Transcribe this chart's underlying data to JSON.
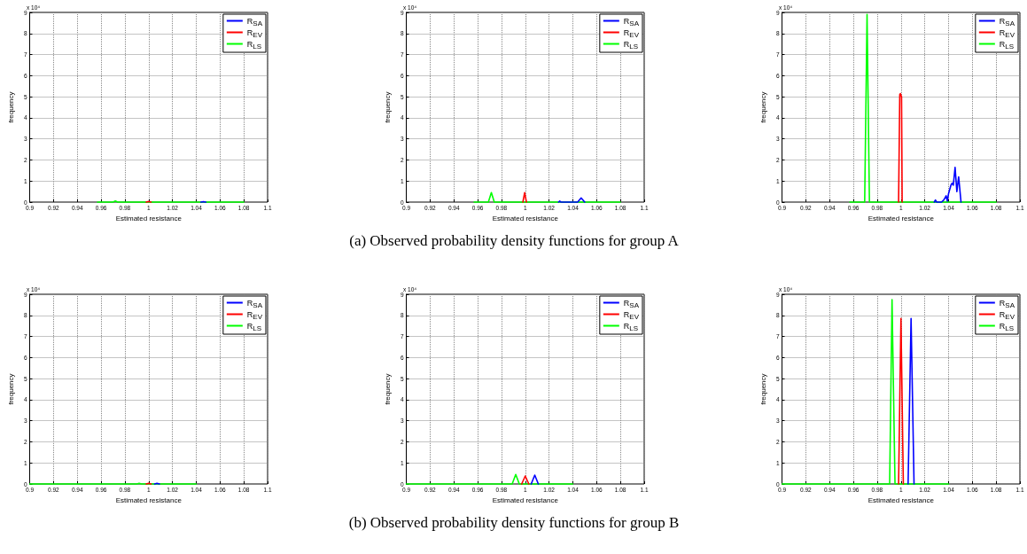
{
  "chart_data": [
    {
      "type": "line",
      "xlabel": "Estimated resistance",
      "ylabel": "frequency",
      "annotations": [
        "x 10⁴"
      ],
      "xlim": [
        0.9,
        1.1
      ],
      "xticks": [
        0.9,
        0.92,
        0.94,
        0.96,
        0.98,
        1,
        1.02,
        1.04,
        1.06,
        1.08,
        1.1
      ],
      "ylim": [
        0,
        9
      ],
      "yticks": [
        0,
        1,
        2,
        3,
        4,
        5,
        6,
        7,
        8,
        9
      ],
      "grid": true,
      "legend": "top right",
      "series": [
        {
          "name": "R$_{SA}$",
          "color": "#0000ff",
          "x": [
            1.044,
            1.046,
            1.048
          ],
          "values": [
            0,
            0.02,
            0
          ]
        },
        {
          "name": "R$_{EV}$",
          "color": "#ff0000",
          "x": [
            0.998,
            1.0,
            1.002
          ],
          "values": [
            0,
            0.03,
            0
          ]
        },
        {
          "name": "R$_{LS}$",
          "color": "#00ff00",
          "x": [
            0.957,
            0.97,
            0.972,
            0.974,
            1.08
          ],
          "values": [
            0,
            0,
            0.05,
            0,
            0
          ]
        }
      ]
    },
    {
      "type": "line",
      "xlabel": "Estimated resistance",
      "ylabel": "frequency",
      "annotations": [
        "x 10⁴",
        "(a) Observed probability density functions for group A"
      ],
      "xlim": [
        0.9,
        1.1
      ],
      "xticks": [
        0.9,
        0.92,
        0.94,
        0.96,
        0.98,
        1,
        1.02,
        1.04,
        1.06,
        1.08,
        1.1
      ],
      "ylim": [
        0,
        9
      ],
      "yticks": [
        0,
        1,
        2,
        3,
        4,
        5,
        6,
        7,
        8,
        9
      ],
      "grid": true,
      "legend": "top right",
      "series": [
        {
          "name": "R$_{SA}$",
          "color": "#0000ff",
          "x": [
            1.028,
            1.029,
            1.03,
            1.044,
            1.047,
            1.05
          ],
          "values": [
            0,
            0.05,
            0,
            0,
            0.2,
            0
          ]
        },
        {
          "name": "R$_{EV}$",
          "color": "#ff0000",
          "x": [
            0.998,
            0.9995,
            1.001
          ],
          "values": [
            0,
            0.45,
            0
          ]
        },
        {
          "name": "R$_{LS}$",
          "color": "#00ff00",
          "x": [
            0.957,
            0.969,
            0.9715,
            0.974,
            1.08
          ],
          "values": [
            0,
            0,
            0.45,
            0,
            0
          ]
        }
      ]
    },
    {
      "type": "line",
      "xlabel": "Estimated resistance",
      "ylabel": "frequency",
      "annotations": [
        "x 10⁴"
      ],
      "xlim": [
        0.9,
        1.1
      ],
      "xticks": [
        0.9,
        0.92,
        0.94,
        0.96,
        0.98,
        1,
        1.02,
        1.04,
        1.06,
        1.08,
        1.1
      ],
      "ylim": [
        0,
        9
      ],
      "yticks": [
        0,
        1,
        2,
        3,
        4,
        5,
        6,
        7,
        8,
        9
      ],
      "grid": true,
      "legend": "top right",
      "series": [
        {
          "name": "R$_{SA}$",
          "color": "#0000ff",
          "x": [
            1.028,
            1.029,
            1.03,
            1.034,
            1.036,
            1.038,
            1.039,
            1.04,
            1.042,
            1.043,
            1.044,
            1.0455,
            1.047,
            1.0485,
            1.0505
          ],
          "values": [
            0,
            0.1,
            0,
            0,
            0.1,
            0.3,
            0.05,
            0.4,
            0.8,
            0.9,
            0.8,
            1.65,
            0.5,
            1.2,
            0
          ]
        },
        {
          "name": "R$_{EV}$",
          "color": "#ff0000",
          "x": [
            0.998,
            0.999,
            0.9995,
            1.0005,
            1.001
          ],
          "values": [
            0,
            5.1,
            5.15,
            5.0,
            0
          ]
        },
        {
          "name": "R$_{LS}$",
          "color": "#00ff00",
          "x": [
            0.957,
            0.9695,
            0.9715,
            0.9735,
            1.08
          ],
          "values": [
            0,
            0,
            8.9,
            0,
            0
          ]
        }
      ]
    },
    {
      "type": "line",
      "xlabel": "Estimated resistance",
      "ylabel": "frequency",
      "annotations": [
        "x 10⁴"
      ],
      "xlim": [
        0.9,
        1.1
      ],
      "xticks": [
        0.9,
        0.92,
        0.94,
        0.96,
        0.98,
        1,
        1.02,
        1.04,
        1.06,
        1.08,
        1.1
      ],
      "ylim": [
        0,
        9
      ],
      "yticks": [
        0,
        1,
        2,
        3,
        4,
        5,
        6,
        7,
        8,
        9
      ],
      "grid": true,
      "legend": "top right",
      "series": [
        {
          "name": "R$_{SA}$",
          "color": "#0000ff",
          "x": [
            1.005,
            1.007,
            1.009
          ],
          "values": [
            0,
            0.03,
            0
          ]
        },
        {
          "name": "R$_{EV}$",
          "color": "#ff0000",
          "x": [
            0.998,
            1.0,
            1.002
          ],
          "values": [
            0,
            0.03,
            0
          ]
        },
        {
          "name": "R$_{LS}$",
          "color": "#00ff00",
          "x": [
            0.9,
            0.99,
            0.992,
            0.994,
            1.04
          ],
          "values": [
            0,
            0,
            0.03,
            0,
            0
          ]
        }
      ]
    },
    {
      "type": "line",
      "xlabel": "Estimated resistance",
      "ylabel": "frequency",
      "annotations": [
        "x 10⁴",
        "(b) Observed probability density functions for group B"
      ],
      "xlim": [
        0.9,
        1.1
      ],
      "xticks": [
        0.9,
        0.92,
        0.94,
        0.96,
        0.98,
        1,
        1.02,
        1.04,
        1.06,
        1.08,
        1.1
      ],
      "ylim": [
        0,
        9
      ],
      "yticks": [
        0,
        1,
        2,
        3,
        4,
        5,
        6,
        7,
        8,
        9
      ],
      "grid": true,
      "legend": "top right",
      "series": [
        {
          "name": "R$_{SA}$",
          "color": "#0000ff",
          "x": [
            1.005,
            1.008,
            1.011
          ],
          "values": [
            0,
            0.42,
            0
          ]
        },
        {
          "name": "R$_{EV}$",
          "color": "#ff0000",
          "x": [
            0.997,
            1.0,
            1.003
          ],
          "values": [
            0,
            0.38,
            0
          ]
        },
        {
          "name": "R$_{LS}$",
          "color": "#00ff00",
          "x": [
            0.9,
            0.989,
            0.992,
            0.995,
            1.04
          ],
          "values": [
            0,
            0,
            0.45,
            0,
            0
          ]
        }
      ]
    },
    {
      "type": "line",
      "xlabel": "Estimated resistance",
      "ylabel": "frequency",
      "annotations": [
        "x 10⁴"
      ],
      "xlim": [
        0.9,
        1.1
      ],
      "xticks": [
        0.9,
        0.92,
        0.94,
        0.96,
        0.98,
        1,
        1.02,
        1.04,
        1.06,
        1.08,
        1.1
      ],
      "ylim": [
        0,
        9
      ],
      "yticks": [
        0,
        1,
        2,
        3,
        4,
        5,
        6,
        7,
        8,
        9
      ],
      "grid": true,
      "legend": "top right",
      "series": [
        {
          "name": "R$_{SA}$",
          "color": "#0000ff",
          "x": [
            1.006,
            1.0085,
            1.011
          ],
          "values": [
            0,
            7.85,
            0
          ]
        },
        {
          "name": "R$_{EV}$",
          "color": "#ff0000",
          "x": [
            0.998,
            1.0,
            1.002
          ],
          "values": [
            0,
            7.85,
            0
          ]
        },
        {
          "name": "R$_{LS}$",
          "color": "#00ff00",
          "x": [
            0.9,
            0.9905,
            0.9925,
            0.995,
            1.04
          ],
          "values": [
            0,
            0,
            8.75,
            0,
            0
          ]
        }
      ]
    }
  ]
}
